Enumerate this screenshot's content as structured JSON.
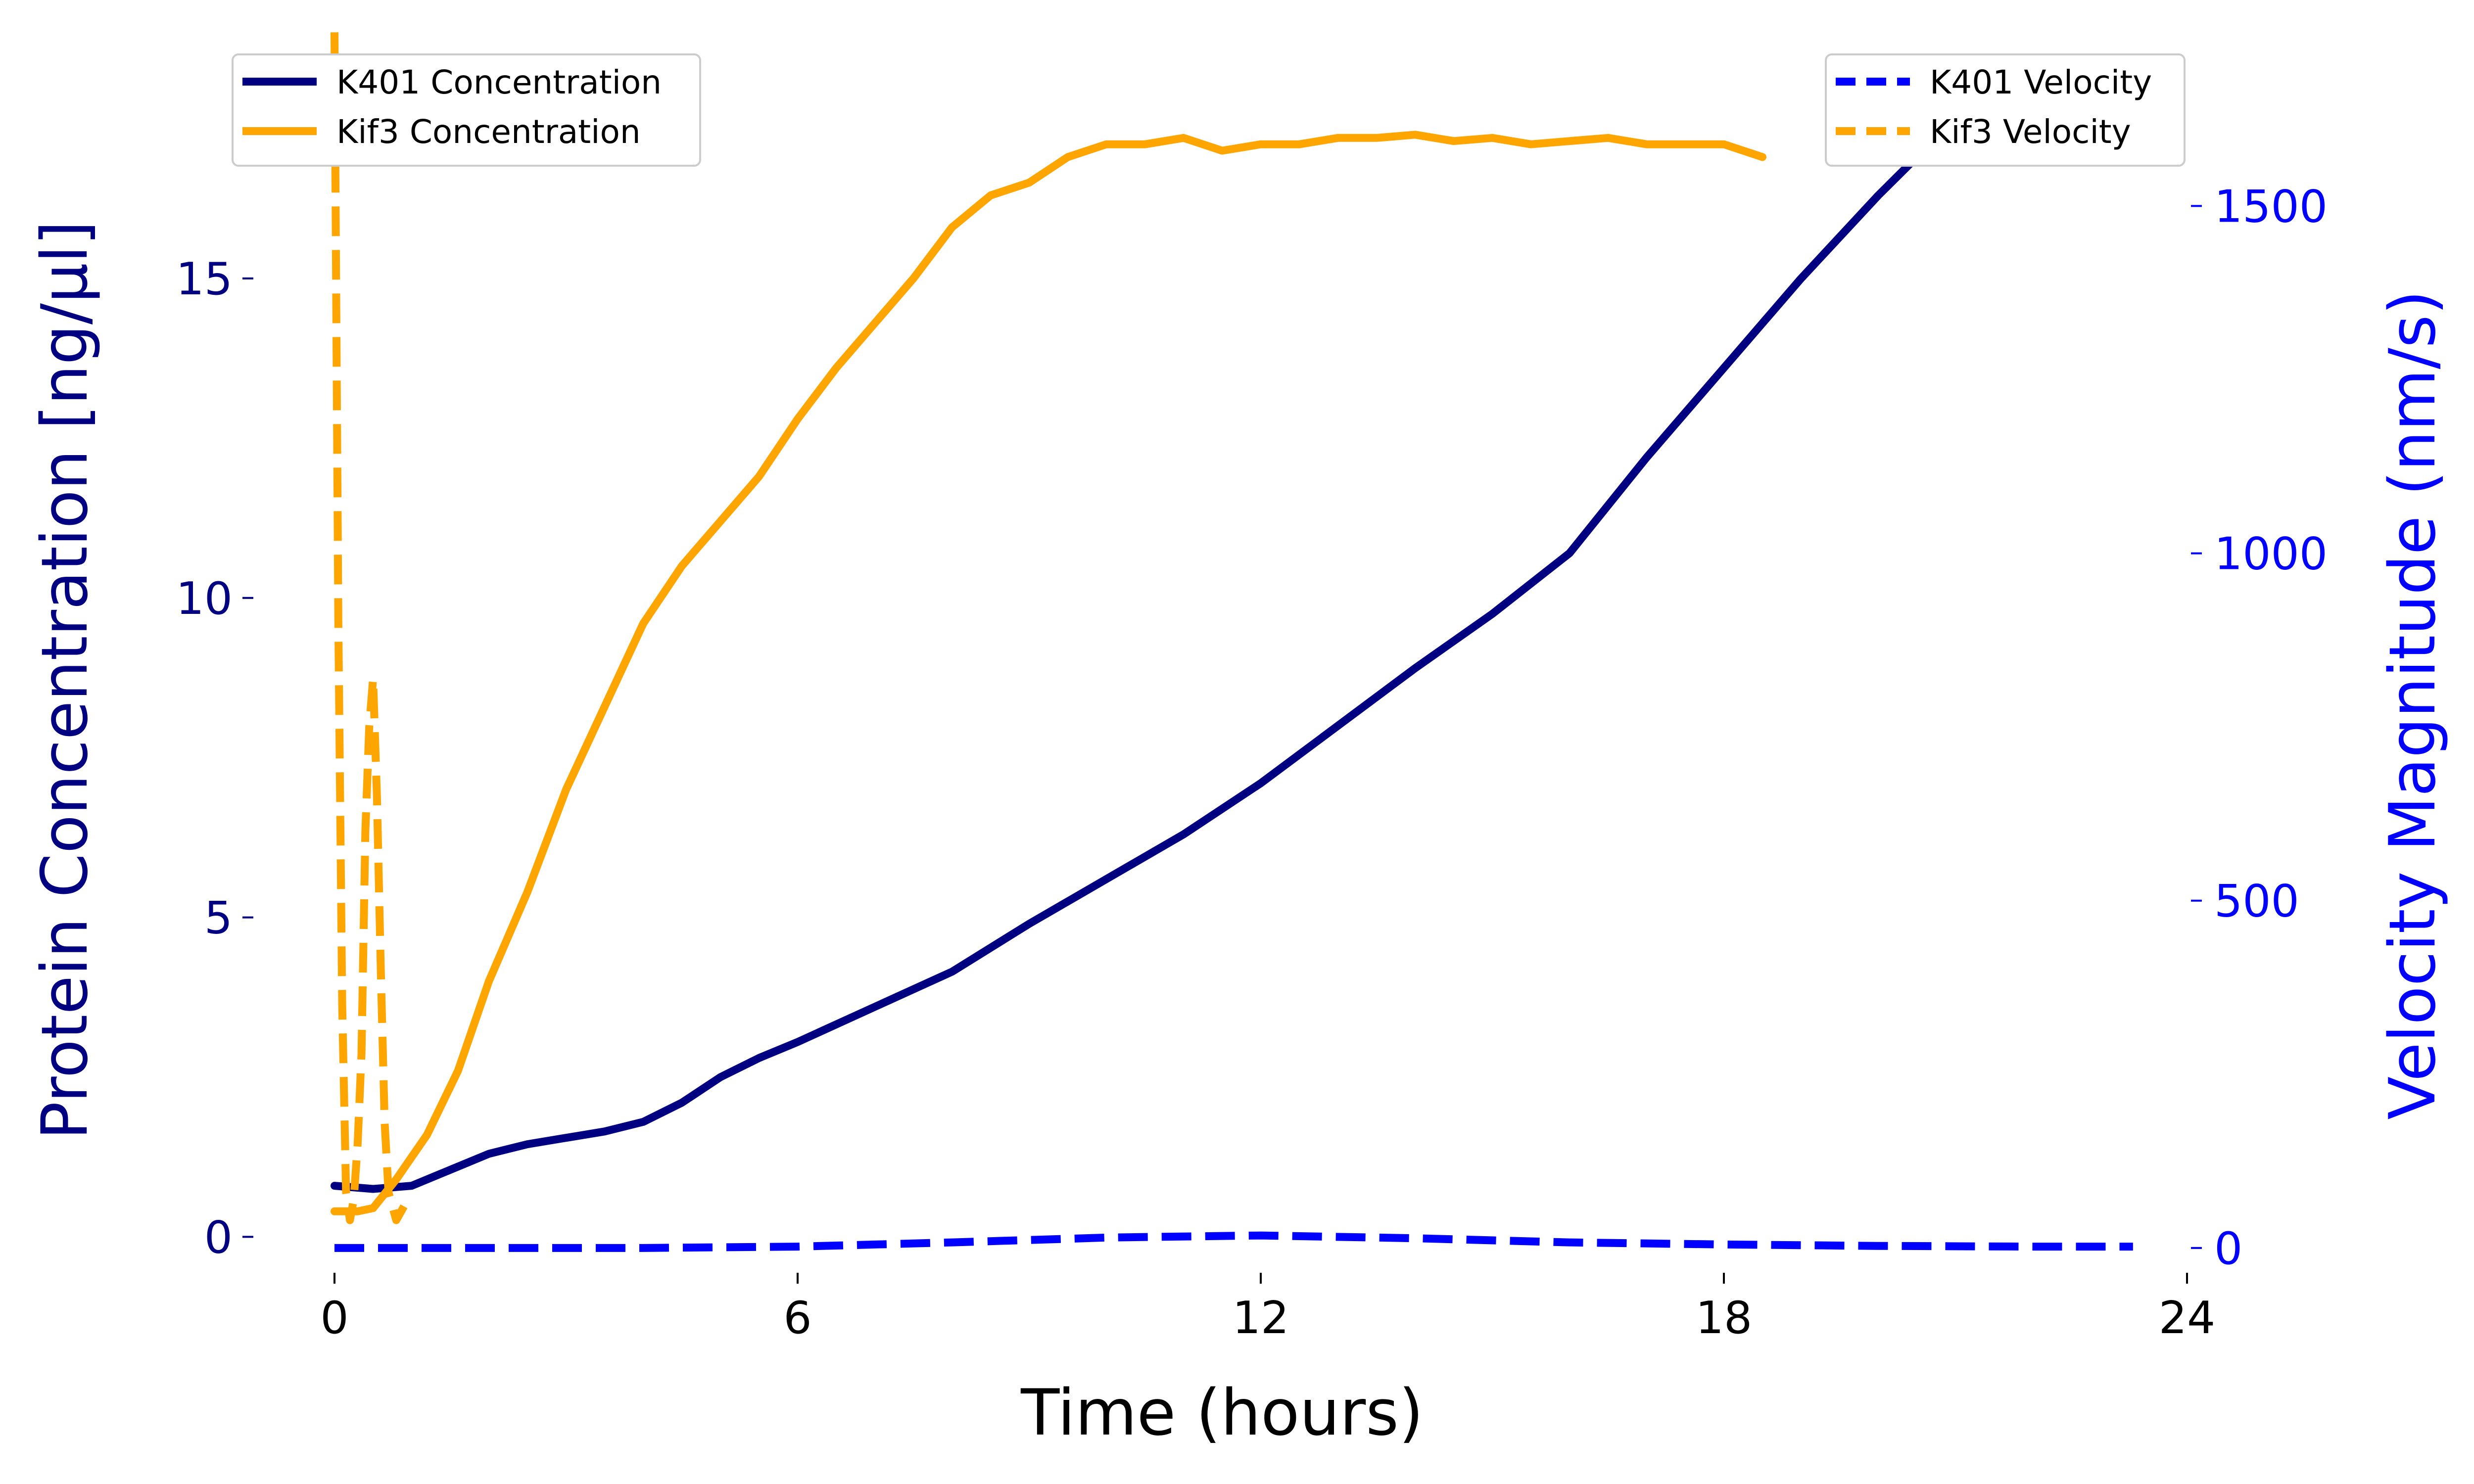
{
  "chart_data": {
    "type": "line",
    "xlabel": "Time (hours)",
    "ylabel_left": "Protein Concentration [ng/µl]",
    "ylabel_right": "Velocity Magnitude (nm/s)",
    "xlim": [
      -1,
      24
    ],
    "ylim_left": [
      -0.5,
      18.7
    ],
    "ylim_right": [
      -30,
      1736
    ],
    "x_ticks": [
      0,
      6,
      12,
      18,
      24
    ],
    "y_left_ticks": [
      0,
      5,
      10,
      15
    ],
    "y_right_ticks": [
      0,
      500,
      1000,
      1500
    ],
    "grid": false,
    "legend_left": {
      "placement": "upper left",
      "entries": [
        "K401 Concentration",
        "Kif3 Concentration"
      ]
    },
    "legend_right": {
      "placement": "upper right",
      "entries": [
        "K401 Velocity",
        "Kif3 Velocity"
      ]
    },
    "series": [
      {
        "name": "K401 Concentration",
        "axis": "left",
        "style": "solid",
        "color": "#000080",
        "x": [
          0,
          0.5,
          1,
          1.5,
          2,
          2.5,
          3,
          3.5,
          4,
          4.5,
          5,
          5.5,
          6,
          7,
          8,
          9,
          10,
          11,
          12,
          13,
          14,
          15,
          16,
          17,
          18,
          19,
          20,
          21,
          22,
          23,
          23.3
        ],
        "y": [
          0.8,
          0.75,
          0.8,
          1.05,
          1.3,
          1.45,
          1.55,
          1.65,
          1.8,
          2.1,
          2.5,
          2.8,
          3.05,
          3.6,
          4.15,
          4.9,
          5.6,
          6.3,
          7.1,
          8.0,
          8.9,
          9.75,
          10.7,
          12.2,
          13.6,
          15.0,
          16.3,
          17.5,
          18.1,
          18.4,
          18.45
        ]
      },
      {
        "name": "Kif3 Concentration",
        "axis": "left",
        "style": "solid",
        "color": "#ffa500",
        "x": [
          0,
          0.3,
          0.5,
          0.8,
          1.2,
          1.6,
          2,
          2.5,
          3,
          3.5,
          4,
          4.5,
          5,
          5.5,
          6,
          6.5,
          7,
          7.5,
          8,
          8.5,
          9,
          9.5,
          10,
          10.5,
          11,
          11.5,
          12,
          12.5,
          13,
          13.5,
          14,
          14.5,
          15,
          15.5,
          16,
          16.5,
          17,
          17.5,
          18,
          18.5
        ],
        "y": [
          0.4,
          0.4,
          0.45,
          0.9,
          1.6,
          2.6,
          4.0,
          5.4,
          7.0,
          8.3,
          9.6,
          10.5,
          11.2,
          11.9,
          12.8,
          13.6,
          14.3,
          15.0,
          15.8,
          16.3,
          16.5,
          16.9,
          17.1,
          17.1,
          17.2,
          17.0,
          17.1,
          17.1,
          17.2,
          17.2,
          17.25,
          17.15,
          17.2,
          17.1,
          17.15,
          17.2,
          17.1,
          17.1,
          17.1,
          16.9
        ]
      },
      {
        "name": "K401 Velocity",
        "axis": "right",
        "style": "dashed",
        "color": "#0000ff",
        "x": [
          0,
          2,
          4,
          6,
          8,
          10,
          12,
          14,
          16,
          18,
          20,
          22,
          23.3
        ],
        "y": [
          0,
          0,
          0,
          2,
          8,
          15,
          18,
          14,
          8,
          5,
          3,
          2,
          2
        ]
      },
      {
        "name": "Kif3 Velocity",
        "axis": "right",
        "style": "dashed",
        "color": "#ffa500",
        "x": [
          0,
          0.05,
          0.1,
          0.15,
          0.2,
          0.25,
          0.3,
          0.35,
          0.4,
          0.45,
          0.5,
          0.55,
          0.6,
          0.65,
          0.7,
          0.8,
          0.9
        ],
        "y": [
          1750,
          900,
          350,
          80,
          40,
          70,
          150,
          280,
          600,
          750,
          820,
          650,
          400,
          180,
          80,
          40,
          60
        ]
      }
    ]
  }
}
